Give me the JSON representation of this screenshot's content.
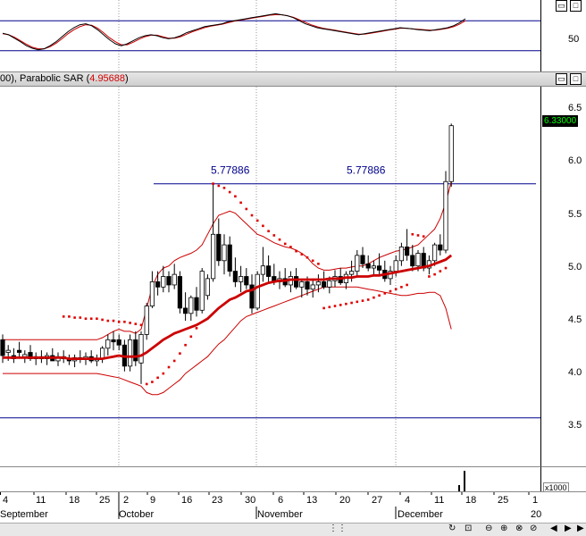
{
  "stoch_pane": {
    "ylabel": "50"
  },
  "price_pane": {
    "title_prefix": "00), Parabolic SAR (",
    "title_value": "4.95688",
    "title_suffix": ")",
    "ylabels": [
      "6.5",
      "6.0",
      "5.5",
      "5.0",
      "4.5",
      "4.0",
      "3.5"
    ],
    "last_price": "6.33000"
  },
  "volume_pane": {
    "scale_label": "x1000"
  },
  "xaxis": {
    "day_labels": [
      "4",
      "11",
      "18",
      "25",
      "2",
      "9",
      "16",
      "23",
      "30",
      "6",
      "13",
      "20",
      "27",
      "4",
      "11",
      "18",
      "25",
      "1"
    ],
    "month_labels": [
      "September",
      "October",
      "November",
      "December",
      "20"
    ]
  },
  "chart_data": {
    "type": "candlestick",
    "ylim": [
      3.1,
      6.7
    ],
    "resistance_line": {
      "value": 5.77886,
      "labels": [
        "5.77886",
        "5.77886"
      ]
    },
    "support_line": {
      "value": 3.56
    },
    "candles": [
      {
        "o": 4.3,
        "h": 4.35,
        "l": 4.08,
        "c": 4.15
      },
      {
        "o": 4.18,
        "h": 4.25,
        "l": 4.1,
        "c": 4.2
      },
      {
        "o": 4.15,
        "h": 4.22,
        "l": 4.08,
        "c": 4.12
      },
      {
        "o": 4.2,
        "h": 4.28,
        "l": 4.12,
        "c": 4.18
      },
      {
        "o": 4.14,
        "h": 4.2,
        "l": 4.08,
        "c": 4.16
      },
      {
        "o": 4.18,
        "h": 4.25,
        "l": 4.1,
        "c": 4.12
      },
      {
        "o": 4.12,
        "h": 4.18,
        "l": 4.06,
        "c": 4.14
      },
      {
        "o": 4.14,
        "h": 4.2,
        "l": 4.08,
        "c": 4.12
      },
      {
        "o": 4.12,
        "h": 4.18,
        "l": 4.06,
        "c": 4.15
      },
      {
        "o": 4.15,
        "h": 4.22,
        "l": 4.1,
        "c": 4.1
      },
      {
        "o": 4.1,
        "h": 4.18,
        "l": 4.05,
        "c": 4.14
      },
      {
        "o": 4.14,
        "h": 4.2,
        "l": 4.08,
        "c": 4.12
      },
      {
        "o": 4.12,
        "h": 4.16,
        "l": 4.06,
        "c": 4.1
      },
      {
        "o": 4.1,
        "h": 4.16,
        "l": 4.04,
        "c": 4.13
      },
      {
        "o": 4.13,
        "h": 4.2,
        "l": 4.08,
        "c": 4.12
      },
      {
        "o": 4.12,
        "h": 4.18,
        "l": 4.06,
        "c": 4.14
      },
      {
        "o": 4.14,
        "h": 4.2,
        "l": 4.08,
        "c": 4.1
      },
      {
        "o": 4.1,
        "h": 4.16,
        "l": 4.05,
        "c": 4.12
      },
      {
        "o": 4.12,
        "h": 4.24,
        "l": 4.08,
        "c": 4.22
      },
      {
        "o": 4.22,
        "h": 4.35,
        "l": 4.15,
        "c": 4.3
      },
      {
        "o": 4.3,
        "h": 4.38,
        "l": 4.2,
        "c": 4.28
      },
      {
        "o": 4.3,
        "h": 4.35,
        "l": 4.2,
        "c": 4.25
      },
      {
        "o": 4.25,
        "h": 4.3,
        "l": 4.0,
        "c": 4.05
      },
      {
        "o": 4.05,
        "h": 4.35,
        "l": 4.0,
        "c": 4.3
      },
      {
        "o": 4.3,
        "h": 4.38,
        "l": 4.05,
        "c": 4.1
      },
      {
        "o": 4.08,
        "h": 4.38,
        "l": 3.88,
        "c": 4.35
      },
      {
        "o": 4.35,
        "h": 4.65,
        "l": 4.3,
        "c": 4.62
      },
      {
        "o": 4.62,
        "h": 4.95,
        "l": 4.6,
        "c": 4.85
      },
      {
        "o": 4.85,
        "h": 4.95,
        "l": 4.72,
        "c": 4.8
      },
      {
        "o": 4.8,
        "h": 5.0,
        "l": 4.75,
        "c": 4.9
      },
      {
        "o": 4.9,
        "h": 4.95,
        "l": 4.75,
        "c": 4.82
      },
      {
        "o": 4.82,
        "h": 5.02,
        "l": 4.78,
        "c": 4.92
      },
      {
        "o": 4.9,
        "h": 4.95,
        "l": 4.55,
        "c": 4.6
      },
      {
        "o": 4.6,
        "h": 4.75,
        "l": 4.48,
        "c": 4.55
      },
      {
        "o": 4.55,
        "h": 4.72,
        "l": 4.48,
        "c": 4.7
      },
      {
        "o": 4.7,
        "h": 4.8,
        "l": 4.52,
        "c": 4.58
      },
      {
        "o": 4.58,
        "h": 4.98,
        "l": 4.55,
        "c": 4.95
      },
      {
        "o": 4.72,
        "h": 4.92,
        "l": 4.68,
        "c": 4.88
      },
      {
        "o": 4.88,
        "h": 5.78,
        "l": 4.85,
        "c": 5.3
      },
      {
        "o": 5.3,
        "h": 5.45,
        "l": 5.0,
        "c": 5.05
      },
      {
        "o": 5.05,
        "h": 5.3,
        "l": 4.92,
        "c": 5.2
      },
      {
        "o": 5.2,
        "h": 5.28,
        "l": 4.9,
        "c": 4.95
      },
      {
        "o": 4.95,
        "h": 5.08,
        "l": 4.8,
        "c": 4.85
      },
      {
        "o": 4.85,
        "h": 5.0,
        "l": 4.75,
        "c": 4.9
      },
      {
        "o": 4.9,
        "h": 4.98,
        "l": 4.78,
        "c": 4.82
      },
      {
        "o": 4.82,
        "h": 4.92,
        "l": 4.55,
        "c": 4.6
      },
      {
        "o": 4.6,
        "h": 4.95,
        "l": 4.58,
        "c": 4.92
      },
      {
        "o": 4.92,
        "h": 5.18,
        "l": 4.85,
        "c": 5.0
      },
      {
        "o": 5.0,
        "h": 5.1,
        "l": 4.85,
        "c": 4.9
      },
      {
        "o": 4.9,
        "h": 5.02,
        "l": 4.82,
        "c": 4.85
      },
      {
        "o": 4.85,
        "h": 4.95,
        "l": 4.78,
        "c": 4.88
      },
      {
        "o": 4.88,
        "h": 4.98,
        "l": 4.8,
        "c": 4.82
      },
      {
        "o": 4.82,
        "h": 4.95,
        "l": 4.75,
        "c": 4.9
      },
      {
        "o": 4.9,
        "h": 4.98,
        "l": 4.78,
        "c": 4.8
      },
      {
        "o": 4.8,
        "h": 4.88,
        "l": 4.7,
        "c": 4.85
      },
      {
        "o": 4.85,
        "h": 4.9,
        "l": 4.72,
        "c": 4.78
      },
      {
        "o": 4.78,
        "h": 4.88,
        "l": 4.7,
        "c": 4.82
      },
      {
        "o": 4.82,
        "h": 4.92,
        "l": 4.75,
        "c": 4.85
      },
      {
        "o": 4.85,
        "h": 4.95,
        "l": 4.78,
        "c": 4.8
      },
      {
        "o": 4.8,
        "h": 4.9,
        "l": 4.74,
        "c": 4.86
      },
      {
        "o": 4.86,
        "h": 4.96,
        "l": 4.8,
        "c": 4.9
      },
      {
        "o": 4.9,
        "h": 4.98,
        "l": 4.82,
        "c": 4.84
      },
      {
        "o": 4.84,
        "h": 4.95,
        "l": 4.78,
        "c": 4.92
      },
      {
        "o": 4.92,
        "h": 5.05,
        "l": 4.85,
        "c": 4.95
      },
      {
        "o": 4.95,
        "h": 5.15,
        "l": 4.9,
        "c": 5.1
      },
      {
        "o": 5.1,
        "h": 5.18,
        "l": 4.98,
        "c": 5.02
      },
      {
        "o": 5.02,
        "h": 5.1,
        "l": 4.95,
        "c": 4.98
      },
      {
        "o": 4.98,
        "h": 5.05,
        "l": 4.9,
        "c": 5.0
      },
      {
        "o": 5.0,
        "h": 5.12,
        "l": 4.92,
        "c": 4.96
      },
      {
        "o": 4.96,
        "h": 5.05,
        "l": 4.85,
        "c": 4.88
      },
      {
        "o": 4.88,
        "h": 5.0,
        "l": 4.82,
        "c": 4.95
      },
      {
        "o": 4.95,
        "h": 5.1,
        "l": 4.9,
        "c": 5.05
      },
      {
        "o": 5.05,
        "h": 5.22,
        "l": 5.0,
        "c": 5.18
      },
      {
        "o": 5.18,
        "h": 5.35,
        "l": 5.05,
        "c": 5.1
      },
      {
        "o": 5.1,
        "h": 5.2,
        "l": 4.95,
        "c": 5.0
      },
      {
        "o": 5.0,
        "h": 5.15,
        "l": 4.95,
        "c": 5.12
      },
      {
        "o": 5.12,
        "h": 5.18,
        "l": 4.95,
        "c": 4.98
      },
      {
        "o": 4.98,
        "h": 5.1,
        "l": 4.92,
        "c": 5.05
      },
      {
        "o": 5.05,
        "h": 5.22,
        "l": 5.0,
        "c": 5.2
      },
      {
        "o": 5.2,
        "h": 5.3,
        "l": 5.1,
        "c": 5.15
      },
      {
        "o": 5.15,
        "h": 5.9,
        "l": 5.12,
        "c": 5.8
      },
      {
        "o": 5.8,
        "h": 6.35,
        "l": 5.75,
        "c": 6.33
      }
    ],
    "ma": [
      4.13,
      4.13,
      4.13,
      4.13,
      4.13,
      4.13,
      4.13,
      4.13,
      4.13,
      4.13,
      4.13,
      4.13,
      4.12,
      4.12,
      4.12,
      4.12,
      4.12,
      4.12,
      4.12,
      4.13,
      4.14,
      4.15,
      4.14,
      4.14,
      4.14,
      4.15,
      4.18,
      4.22,
      4.26,
      4.3,
      4.33,
      4.36,
      4.38,
      4.4,
      4.42,
      4.44,
      4.47,
      4.5,
      4.55,
      4.6,
      4.64,
      4.68,
      4.7,
      4.73,
      4.76,
      4.77,
      4.8,
      4.82,
      4.84,
      4.85,
      4.86,
      4.86,
      4.87,
      4.87,
      4.87,
      4.87,
      4.87,
      4.87,
      4.87,
      4.88,
      4.88,
      4.88,
      4.89,
      4.89,
      4.9,
      4.9,
      4.9,
      4.91,
      4.91,
      4.92,
      4.93,
      4.94,
      4.95,
      4.96,
      4.97,
      4.98,
      4.99,
      5.0,
      5.02,
      5.04,
      5.06,
      5.1
    ],
    "bb_upper": [
      4.3,
      4.3,
      4.3,
      4.3,
      4.3,
      4.3,
      4.3,
      4.3,
      4.3,
      4.3,
      4.3,
      4.3,
      4.3,
      4.3,
      4.3,
      4.3,
      4.3,
      4.3,
      4.32,
      4.35,
      4.38,
      4.4,
      4.38,
      4.38,
      4.36,
      4.4,
      4.6,
      4.8,
      4.92,
      4.98,
      5.0,
      5.05,
      5.08,
      5.1,
      5.12,
      5.15,
      5.2,
      5.3,
      5.4,
      5.48,
      5.5,
      5.52,
      5.5,
      5.45,
      5.4,
      5.35,
      5.3,
      5.28,
      5.25,
      5.22,
      5.2,
      5.18,
      5.17,
      5.15,
      5.12,
      5.08,
      5.02,
      4.98,
      4.96,
      4.96,
      4.97,
      4.98,
      4.98,
      4.99,
      5.0,
      5.0,
      5.02,
      5.05,
      5.08,
      5.1,
      5.12,
      5.14,
      5.15,
      5.16,
      5.18,
      5.2,
      5.25,
      5.3,
      5.35,
      5.45,
      5.6,
      5.8
    ],
    "bb_lower": [
      3.98,
      3.98,
      3.98,
      3.98,
      3.98,
      3.98,
      3.98,
      3.98,
      3.98,
      3.98,
      3.98,
      3.98,
      3.98,
      3.98,
      3.98,
      3.98,
      3.98,
      3.98,
      3.97,
      3.96,
      3.95,
      3.94,
      3.92,
      3.9,
      3.88,
      3.86,
      3.8,
      3.78,
      3.78,
      3.8,
      3.84,
      3.88,
      3.92,
      3.98,
      4.02,
      4.06,
      4.1,
      4.14,
      4.2,
      4.26,
      4.3,
      4.36,
      4.42,
      4.48,
      4.52,
      4.54,
      4.56,
      4.58,
      4.6,
      4.62,
      4.64,
      4.66,
      4.68,
      4.7,
      4.72,
      4.74,
      4.76,
      4.78,
      4.8,
      4.8,
      4.8,
      4.8,
      4.8,
      4.8,
      4.8,
      4.79,
      4.78,
      4.77,
      4.76,
      4.75,
      4.74,
      4.73,
      4.72,
      4.72,
      4.73,
      4.74,
      4.74,
      4.75,
      4.75,
      4.72,
      4.6,
      4.4
    ],
    "sar": [
      {
        "i": 11,
        "v": 4.52
      },
      {
        "i": 12,
        "v": 4.52
      },
      {
        "i": 13,
        "v": 4.51
      },
      {
        "i": 14,
        "v": 4.51
      },
      {
        "i": 15,
        "v": 4.5
      },
      {
        "i": 16,
        "v": 4.5
      },
      {
        "i": 17,
        "v": 4.5
      },
      {
        "i": 18,
        "v": 4.49
      },
      {
        "i": 19,
        "v": 4.48
      },
      {
        "i": 20,
        "v": 4.48
      },
      {
        "i": 21,
        "v": 4.47
      },
      {
        "i": 22,
        "v": 4.47
      },
      {
        "i": 23,
        "v": 4.46
      },
      {
        "i": 24,
        "v": 4.45
      },
      {
        "i": 25,
        "v": 4.44
      },
      {
        "i": 26,
        "v": 3.88
      },
      {
        "i": 27,
        "v": 3.9
      },
      {
        "i": 28,
        "v": 3.94
      },
      {
        "i": 29,
        "v": 3.98
      },
      {
        "i": 30,
        "v": 4.04
      },
      {
        "i": 31,
        "v": 4.1
      },
      {
        "i": 32,
        "v": 4.17
      },
      {
        "i": 33,
        "v": 4.25
      },
      {
        "i": 34,
        "v": 4.33
      },
      {
        "i": 35,
        "v": 4.41
      },
      {
        "i": 38,
        "v": 5.78
      },
      {
        "i": 39,
        "v": 5.76
      },
      {
        "i": 40,
        "v": 5.74
      },
      {
        "i": 41,
        "v": 5.7
      },
      {
        "i": 42,
        "v": 5.66
      },
      {
        "i": 43,
        "v": 5.6
      },
      {
        "i": 44,
        "v": 5.54
      },
      {
        "i": 45,
        "v": 5.48
      },
      {
        "i": 46,
        "v": 5.43
      },
      {
        "i": 47,
        "v": 5.38
      },
      {
        "i": 48,
        "v": 5.33
      },
      {
        "i": 49,
        "v": 5.29
      },
      {
        "i": 50,
        "v": 5.25
      },
      {
        "i": 51,
        "v": 5.21
      },
      {
        "i": 52,
        "v": 5.18
      },
      {
        "i": 53,
        "v": 5.14
      },
      {
        "i": 54,
        "v": 5.11
      },
      {
        "i": 55,
        "v": 5.08
      },
      {
        "i": 56,
        "v": 5.05
      },
      {
        "i": 57,
        "v": 5.02
      },
      {
        "i": 58,
        "v": 4.6
      },
      {
        "i": 59,
        "v": 4.61
      },
      {
        "i": 60,
        "v": 4.62
      },
      {
        "i": 61,
        "v": 4.63
      },
      {
        "i": 62,
        "v": 4.64
      },
      {
        "i": 63,
        "v": 4.65
      },
      {
        "i": 64,
        "v": 4.66
      },
      {
        "i": 65,
        "v": 4.67
      },
      {
        "i": 66,
        "v": 4.68
      },
      {
        "i": 67,
        "v": 4.7
      },
      {
        "i": 68,
        "v": 4.72
      },
      {
        "i": 69,
        "v": 4.74
      },
      {
        "i": 70,
        "v": 4.76
      },
      {
        "i": 71,
        "v": 4.78
      },
      {
        "i": 72,
        "v": 4.8
      },
      {
        "i": 73,
        "v": 4.82
      },
      {
        "i": 74,
        "v": 5.3
      },
      {
        "i": 75,
        "v": 5.29
      },
      {
        "i": 76,
        "v": 5.28
      },
      {
        "i": 77,
        "v": 4.9
      },
      {
        "i": 78,
        "v": 4.92
      },
      {
        "i": 79,
        "v": 4.95
      },
      {
        "i": 80,
        "v": 4.98
      }
    ],
    "stochastic": {
      "ylim": [
        0,
        100
      ],
      "upper_band": 80,
      "lower_band": 20,
      "k": [
        55,
        52,
        45,
        38,
        30,
        25,
        22,
        24,
        30,
        38,
        48,
        58,
        66,
        72,
        74,
        70,
        62,
        52,
        42,
        34,
        30,
        34,
        40,
        46,
        50,
        52,
        50,
        46,
        44,
        46,
        50,
        56,
        60,
        64,
        68,
        70,
        72,
        74,
        78,
        80,
        82,
        84,
        86,
        88,
        90,
        92,
        94,
        92,
        90,
        86,
        80,
        74,
        70,
        66,
        64,
        62,
        60,
        58,
        56,
        54,
        52,
        54,
        56,
        58,
        60,
        62,
        64,
        66,
        65,
        64,
        62,
        61,
        60,
        62,
        64,
        66,
        70,
        76,
        84
      ],
      "d": [
        54,
        52,
        47,
        40,
        33,
        27,
        24,
        24,
        28,
        35,
        44,
        54,
        62,
        68,
        72,
        71,
        65,
        56,
        46,
        38,
        32,
        32,
        37,
        43,
        48,
        51,
        51,
        48,
        45,
        45,
        48,
        53,
        58,
        62,
        66,
        69,
        71,
        73,
        76,
        79,
        81,
        83,
        85,
        87,
        89,
        91,
        92,
        92,
        90,
        87,
        82,
        77,
        72,
        68,
        65,
        63,
        61,
        59,
        57,
        55,
        53,
        53,
        55,
        57,
        59,
        61,
        63,
        65,
        65,
        64,
        63,
        62,
        61,
        61,
        63,
        65,
        68,
        73,
        80
      ]
    }
  }
}
